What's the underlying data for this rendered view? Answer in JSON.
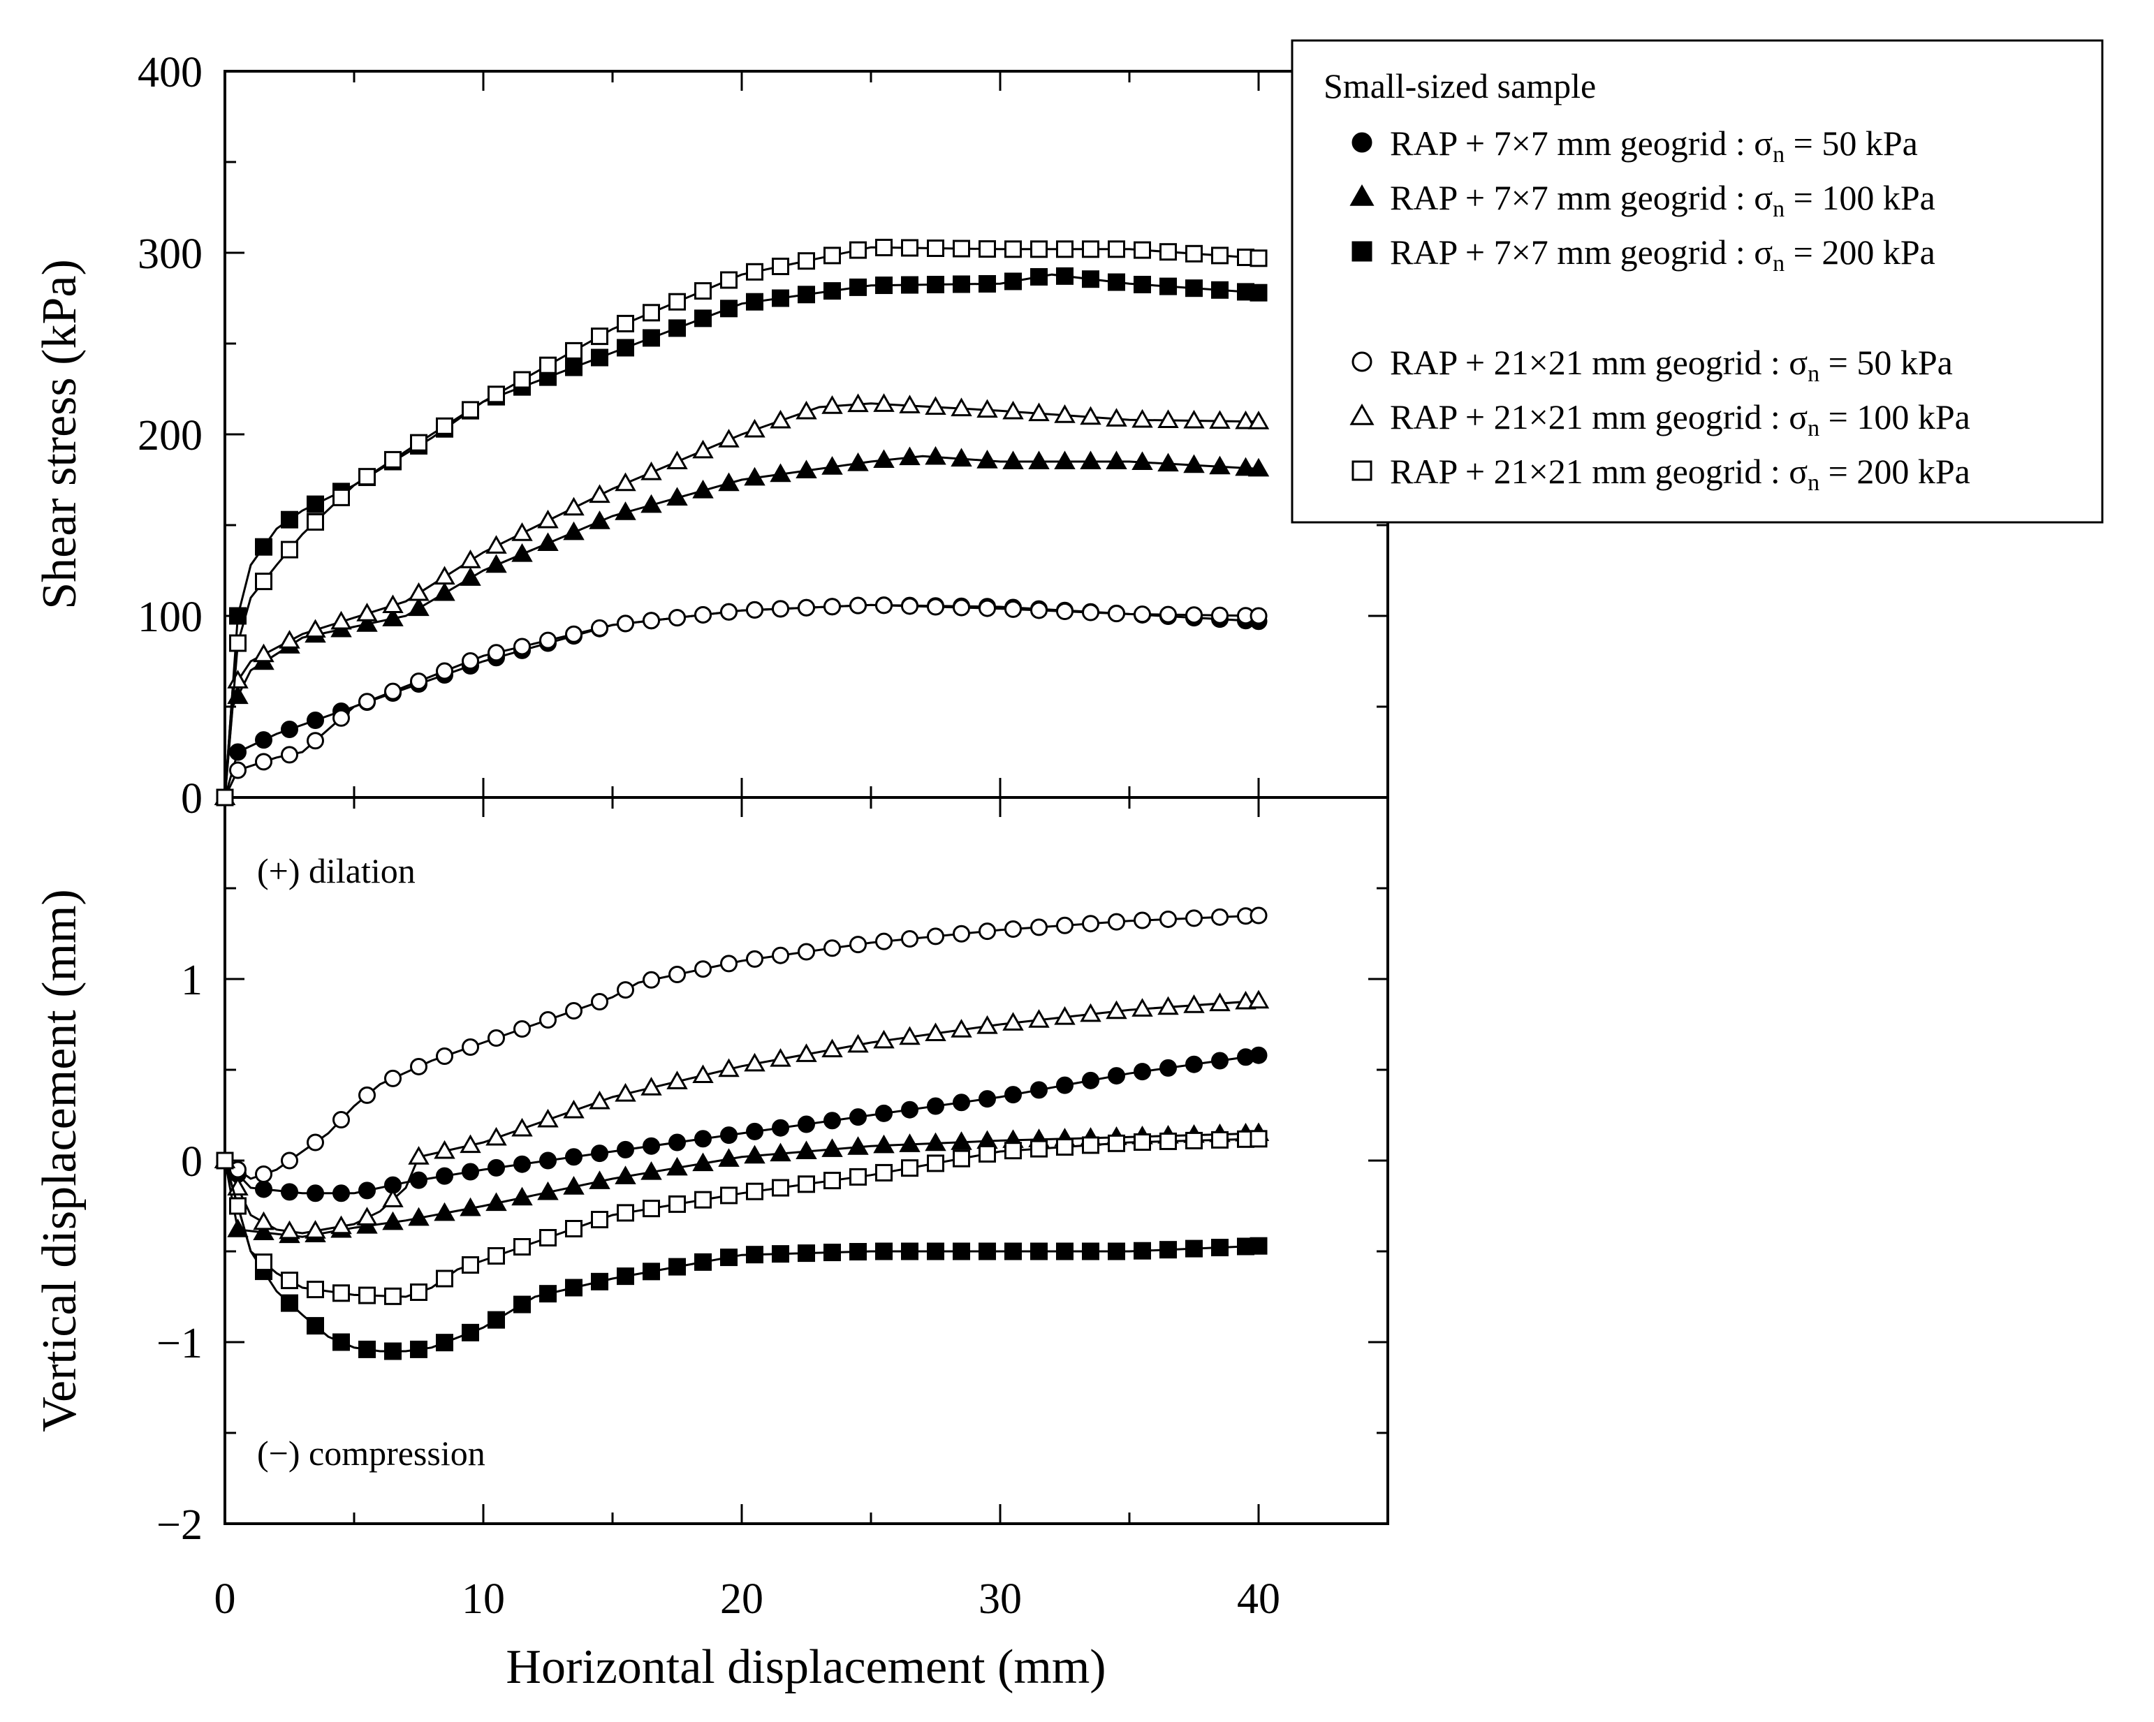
{
  "chart_data": {
    "type": "line",
    "x_axis": {
      "label": "Horizontal displacement (mm)",
      "lim": [
        0,
        45
      ],
      "ticks": [
        0,
        10,
        20,
        30,
        40
      ],
      "tick_labels": [
        "0",
        "10",
        "20",
        "30",
        "40"
      ]
    },
    "legend": {
      "title": "Small-sized sample",
      "position": "top-right",
      "entries": [
        {
          "key": "s7_50",
          "marker": "circle",
          "filled": true,
          "label_pre": "RAP + 7×7 mm geogrid : σ",
          "label_sub": "n",
          "label_post": " = 50 kPa"
        },
        {
          "key": "s7_100",
          "marker": "triangle",
          "filled": true,
          "label_pre": "RAP + 7×7 mm geogrid : σ",
          "label_sub": "n",
          "label_post": " = 100 kPa"
        },
        {
          "key": "s7_200",
          "marker": "square",
          "filled": true,
          "label_pre": "RAP + 7×7 mm geogrid : σ",
          "label_sub": "n",
          "label_post": " = 200 kPa"
        },
        {
          "key": "s21_50",
          "marker": "circle",
          "filled": false,
          "label_pre": "RAP + 21×21 mm geogrid : σ",
          "label_sub": "n",
          "label_post": " = 50 kPa"
        },
        {
          "key": "s21_100",
          "marker": "triangle",
          "filled": false,
          "label_pre": "RAP + 21×21 mm geogrid : σ",
          "label_sub": "n",
          "label_post": " = 100 kPa"
        },
        {
          "key": "s21_200",
          "marker": "square",
          "filled": false,
          "label_pre": "RAP + 21×21 mm geogrid : σ",
          "label_sub": "n",
          "label_post": " = 200 kPa"
        }
      ]
    },
    "panels": [
      {
        "id": "shear",
        "ylabel": "Shear stress (kPa)",
        "ylim": [
          0,
          400
        ],
        "yticks": [
          0,
          100,
          200,
          300,
          400
        ],
        "ytick_labels": [
          "0",
          "100",
          "200",
          "300",
          "400"
        ],
        "series": {
          "s7_50": [
            [
              0,
              0
            ],
            [
              0.5,
              25
            ],
            [
              2,
              35
            ],
            [
              5,
              50
            ],
            [
              10,
              75
            ],
            [
              15,
              95
            ],
            [
              20,
              103
            ],
            [
              25,
              106
            ],
            [
              30,
              105
            ],
            [
              35,
              101
            ],
            [
              40,
              97
            ]
          ],
          "s7_100": [
            [
              0,
              0
            ],
            [
              0.3,
              50
            ],
            [
              1,
              70
            ],
            [
              3,
              88
            ],
            [
              7,
              100
            ],
            [
              10,
              125
            ],
            [
              15,
              155
            ],
            [
              20,
              175
            ],
            [
              25,
              185
            ],
            [
              27,
              188
            ],
            [
              30,
              185
            ],
            [
              35,
              185
            ],
            [
              40,
              181
            ]
          ],
          "s7_200": [
            [
              0,
              0
            ],
            [
              0.5,
              100
            ],
            [
              1,
              128
            ],
            [
              2,
              148
            ],
            [
              3,
              158
            ],
            [
              5,
              172
            ],
            [
              8,
              198
            ],
            [
              10,
              218
            ],
            [
              15,
              245
            ],
            [
              20,
              272
            ],
            [
              25,
              282
            ],
            [
              30,
              283
            ],
            [
              32,
              288
            ],
            [
              35,
              283
            ],
            [
              40,
              278
            ]
          ],
          "s21_50": [
            [
              0,
              0
            ],
            [
              0.5,
              15
            ],
            [
              2,
              22
            ],
            [
              3,
              25
            ],
            [
              5,
              50
            ],
            [
              10,
              78
            ],
            [
              15,
              95
            ],
            [
              20,
              103
            ],
            [
              25,
              106
            ],
            [
              30,
              104
            ],
            [
              35,
              101
            ],
            [
              40,
              100
            ]
          ],
          "s21_100": [
            [
              0,
              0
            ],
            [
              0.3,
              60
            ],
            [
              1,
              75
            ],
            [
              3,
              90
            ],
            [
              7,
              108
            ],
            [
              10,
              135
            ],
            [
              15,
              170
            ],
            [
              20,
              200
            ],
            [
              23,
              215
            ],
            [
              25,
              217
            ],
            [
              30,
              213
            ],
            [
              35,
              208
            ],
            [
              40,
              207
            ]
          ],
          "s21_200": [
            [
              0,
              0
            ],
            [
              0.5,
              85
            ],
            [
              1,
              110
            ],
            [
              2,
              128
            ],
            [
              3,
              145
            ],
            [
              5,
              172
            ],
            [
              8,
              200
            ],
            [
              10,
              218
            ],
            [
              15,
              258
            ],
            [
              20,
              288
            ],
            [
              25,
              303
            ],
            [
              30,
              302
            ],
            [
              35,
              302
            ],
            [
              40,
              297
            ]
          ]
        }
      },
      {
        "id": "vertical",
        "ylabel": "Vertical displacement (mm)",
        "ylim": [
          -2,
          2
        ],
        "yticks": [
          -2,
          -1,
          0,
          1
        ],
        "ytick_labels": [
          "−2",
          "−1",
          "0",
          "1"
        ],
        "annotations": [
          "(+) dilation",
          "(−) compression"
        ],
        "series": {
          "s7_50": [
            [
              0,
              0
            ],
            [
              1,
              -0.15
            ],
            [
              3,
              -0.18
            ],
            [
              5,
              -0.18
            ],
            [
              7,
              -0.12
            ],
            [
              10,
              -0.05
            ],
            [
              15,
              0.05
            ],
            [
              20,
              0.15
            ],
            [
              25,
              0.25
            ],
            [
              30,
              0.35
            ],
            [
              35,
              0.48
            ],
            [
              40,
              0.58
            ]
          ],
          "s7_100": [
            [
              0,
              0
            ],
            [
              0.5,
              -0.38
            ],
            [
              3,
              -0.42
            ],
            [
              5,
              -0.37
            ],
            [
              7,
              -0.33
            ],
            [
              10,
              -0.25
            ],
            [
              15,
              -0.1
            ],
            [
              20,
              0.02
            ],
            [
              25,
              0.08
            ],
            [
              30,
              0.11
            ],
            [
              35,
              0.13
            ],
            [
              40,
              0.15
            ]
          ],
          "s7_200": [
            [
              0,
              0
            ],
            [
              1,
              -0.5
            ],
            [
              2,
              -0.72
            ],
            [
              3,
              -0.85
            ],
            [
              4,
              -0.97
            ],
            [
              5,
              -1.03
            ],
            [
              6,
              -1.05
            ],
            [
              7,
              -1.05
            ],
            [
              8,
              -1.03
            ],
            [
              10,
              -0.92
            ],
            [
              12,
              -0.75
            ],
            [
              15,
              -0.65
            ],
            [
              20,
              -0.52
            ],
            [
              25,
              -0.5
            ],
            [
              30,
              -0.5
            ],
            [
              35,
              -0.5
            ],
            [
              40,
              -0.47
            ]
          ],
          "s21_50": [
            [
              0,
              0
            ],
            [
              1,
              -0.1
            ],
            [
              2,
              -0.05
            ],
            [
              3,
              0.05
            ],
            [
              4,
              0.15
            ],
            [
              5,
              0.3
            ],
            [
              6,
              0.42
            ],
            [
              8,
              0.55
            ],
            [
              10,
              0.65
            ],
            [
              15,
              0.9
            ],
            [
              16,
              0.98
            ],
            [
              20,
              1.1
            ],
            [
              25,
              1.2
            ],
            [
              30,
              1.27
            ],
            [
              35,
              1.32
            ],
            [
              40,
              1.35
            ]
          ],
          "s21_100": [
            [
              0,
              0
            ],
            [
              1,
              -0.3
            ],
            [
              2,
              -0.38
            ],
            [
              3,
              -0.4
            ],
            [
              5,
              -0.35
            ],
            [
              6,
              -0.28
            ],
            [
              7,
              -0.15
            ],
            [
              7.5,
              0.02
            ],
            [
              10,
              0.1
            ],
            [
              15,
              0.35
            ],
            [
              20,
              0.52
            ],
            [
              25,
              0.65
            ],
            [
              30,
              0.75
            ],
            [
              35,
              0.83
            ],
            [
              40,
              0.88
            ]
          ],
          "s21_200": [
            [
              0,
              0
            ],
            [
              1,
              -0.5
            ],
            [
              2,
              -0.62
            ],
            [
              3,
              -0.7
            ],
            [
              5,
              -0.74
            ],
            [
              7,
              -0.75
            ],
            [
              8,
              -0.7
            ],
            [
              9,
              -0.6
            ],
            [
              10,
              -0.55
            ],
            [
              15,
              -0.3
            ],
            [
              20,
              -0.18
            ],
            [
              25,
              -0.08
            ],
            [
              30,
              0.05
            ],
            [
              35,
              0.1
            ],
            [
              40,
              0.12
            ]
          ]
        }
      }
    ]
  }
}
